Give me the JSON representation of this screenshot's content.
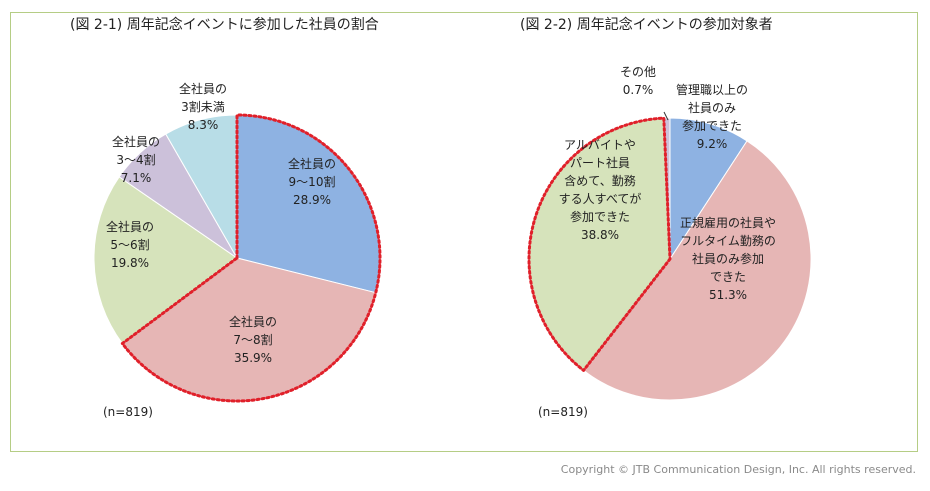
{
  "chart_data": [
    {
      "type": "pie",
      "title": "(図 2-1) 周年記念イベントに参加した社員の割合",
      "note": "(n=819)",
      "slices": [
        {
          "label_lines": [
            "全社員の",
            "9～10割"
          ],
          "value_text": "28.9%",
          "value": 28.9,
          "color": "#8eb2e2"
        },
        {
          "label_lines": [
            "全社員の",
            "7～8割"
          ],
          "value_text": "35.9%",
          "value": 35.9,
          "color": "#e6b6b5"
        },
        {
          "label_lines": [
            "全社員の",
            "5～6割"
          ],
          "value_text": "19.8%",
          "value": 19.8,
          "color": "#d6e3bb"
        },
        {
          "label_lines": [
            "全社員の",
            "3～4割"
          ],
          "value_text": "7.1%",
          "value": 7.1,
          "color": "#ccc1da"
        },
        {
          "label_lines": [
            "全社員の",
            "3割未満"
          ],
          "value_text": "8.3%",
          "value": 8.3,
          "color": "#b8dde7"
        }
      ],
      "highlighted_slices": [
        0,
        1
      ]
    },
    {
      "type": "pie",
      "title": "(図 2-2) 周年記念イベントの参加対象者",
      "note": "(n=819)",
      "slices": [
        {
          "label_lines": [
            "管理職以上の",
            "社員のみ",
            "参加できた"
          ],
          "value_text": "9.2%",
          "value": 9.2,
          "color": "#8eb2e2"
        },
        {
          "label_lines": [
            "正規雇用の社員や",
            "フルタイム勤務の",
            "社員のみ参加",
            "できた"
          ],
          "value_text": "51.3%",
          "value": 51.3,
          "color": "#e6b6b5"
        },
        {
          "label_lines": [
            "アルバイトや",
            "パート社員",
            "含めて、勤務",
            "する人すべてが",
            "参加できた"
          ],
          "value_text": "38.8%",
          "value": 38.8,
          "color": "#d6e3bb"
        },
        {
          "label_lines": [
            "その他"
          ],
          "value_text": "0.7%",
          "value": 0.7,
          "color": "#ccc1da"
        }
      ],
      "highlighted_slices": [
        2
      ]
    }
  ],
  "footer": {
    "copyright": "Copyright © JTB Communication Design, Inc. All rights reserved."
  },
  "colors": {
    "frame_border": "#b5cd85",
    "highlight_outline": "#e0202a"
  }
}
